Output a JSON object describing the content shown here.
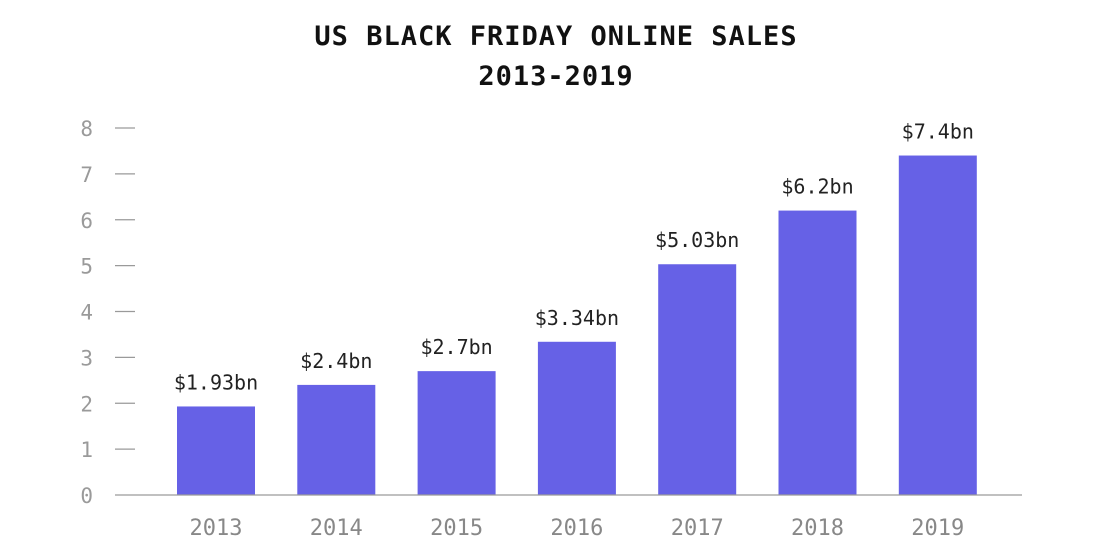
{
  "chart_data": {
    "type": "bar",
    "title": [
      "US BLACK FRIDAY ONLINE SALES",
      "2013-2019"
    ],
    "xlabel": "",
    "ylabel": "",
    "categories": [
      "2013",
      "2014",
      "2015",
      "2016",
      "2017",
      "2018",
      "2019"
    ],
    "values": [
      1.93,
      2.4,
      2.7,
      3.34,
      5.03,
      6.2,
      7.4
    ],
    "data_labels": [
      "$1.93bn",
      "$2.4bn",
      "$2.7bn",
      "$3.34bn",
      "$5.03bn",
      "$6.2bn",
      "$7.4bn"
    ],
    "ylim": [
      0,
      8
    ],
    "yticks": [
      0,
      1,
      2,
      3,
      4,
      5,
      6,
      7,
      8
    ],
    "ytick_labels": [
      "0",
      "1",
      "2",
      "3",
      "4",
      "5",
      "6",
      "7",
      "8"
    ],
    "grid": false,
    "legend": "none",
    "bar_color": "#6661e6",
    "axis_color": "#9a9a9a"
  }
}
